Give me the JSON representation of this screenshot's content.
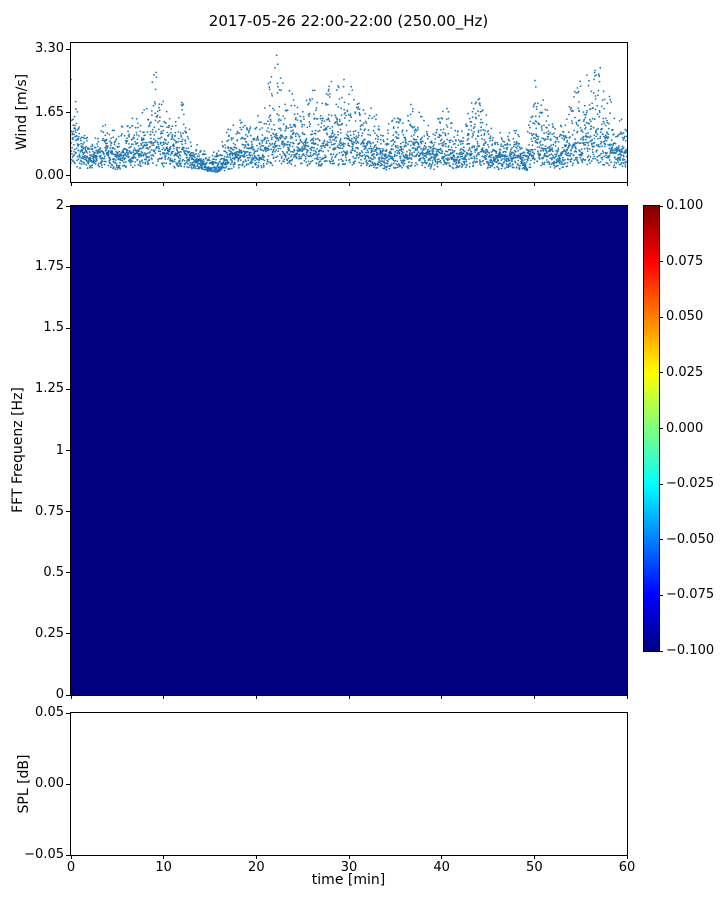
{
  "title": "2017-05-26 22:00-22:00 (250.00_Hz)",
  "chart_data": [
    {
      "type": "scatter",
      "ylabel": "Wind [m/s]",
      "xlim": [
        0,
        60
      ],
      "ylim": [
        -0.165,
        3.465
      ],
      "ytick_values": [
        0,
        1.65,
        3.3
      ],
      "ytick_labels": [
        "0.00",
        "1.65",
        "3.30"
      ],
      "xtick_values": [
        0,
        10,
        20,
        30,
        40,
        50,
        60
      ],
      "marker_color": "#1f77b4",
      "n_points": 4200,
      "seed": 7,
      "minute_base": [
        0.8,
        0.5,
        0.4,
        0.45,
        0.5,
        0.4,
        0.5,
        0.5,
        0.6,
        0.7,
        0.6,
        0.5,
        0.6,
        0.4,
        0.3,
        0.15,
        0.2,
        0.4,
        0.5,
        0.5,
        0.5,
        0.6,
        0.8,
        0.7,
        0.6,
        0.6,
        0.7,
        0.6,
        0.8,
        0.7,
        0.7,
        0.7,
        0.6,
        0.5,
        0.4,
        0.5,
        0.45,
        0.6,
        0.5,
        0.4,
        0.55,
        0.5,
        0.45,
        0.5,
        0.6,
        0.45,
        0.4,
        0.4,
        0.45,
        0.25,
        0.6,
        0.6,
        0.5,
        0.45,
        0.6,
        0.7,
        0.8,
        0.75,
        0.6,
        0.5
      ],
      "minute_max": [
        2.6,
        1.3,
        0.9,
        1.1,
        1.4,
        1.0,
        1.5,
        1.4,
        1.8,
        3.1,
        2.3,
        1.5,
        2.0,
        1.0,
        0.7,
        0.5,
        0.7,
        1.4,
        1.7,
        1.5,
        1.4,
        1.9,
        3.2,
        2.4,
        2.0,
        1.7,
        2.3,
        1.7,
        2.9,
        2.3,
        2.5,
        2.1,
        1.8,
        1.5,
        1.2,
        1.7,
        1.3,
        2.0,
        1.6,
        1.1,
        1.9,
        1.6,
        1.2,
        1.7,
        2.4,
        1.4,
        1.1,
        1.0,
        1.2,
        0.6,
        2.4,
        2.0,
        1.5,
        1.3,
        2.2,
        2.7,
        3.0,
        2.8,
        2.3,
        1.4
      ]
    },
    {
      "type": "heatmap",
      "ylabel": "FFT Frequenz [Hz]",
      "xlim": [
        0,
        60
      ],
      "ylim": [
        0,
        2
      ],
      "ytick_values": [
        0,
        0.25,
        0.5,
        0.75,
        1,
        1.25,
        1.5,
        1.75,
        2
      ],
      "ytick_labels": [
        "0",
        "0.25",
        "0.5",
        "0.75",
        "1",
        "1.25",
        "1.5",
        "1.75",
        "2"
      ],
      "xtick_values": [
        0,
        10,
        20,
        30,
        40,
        50,
        60
      ],
      "fill_value": -0.1,
      "fill_color": "#000080",
      "colorbar": {
        "colormap": "jet",
        "vmin": -0.1,
        "vmax": 0.1,
        "tick_labels": [
          "0.100",
          "0.075",
          "0.050",
          "0.025",
          "0.000",
          "−0.025",
          "−0.050",
          "−0.075",
          "−0.100"
        ],
        "gradient_stops": [
          {
            "pos": 0,
            "color": "#00007f"
          },
          {
            "pos": 12.5,
            "color": "#0000ff"
          },
          {
            "pos": 37.5,
            "color": "#00ffff"
          },
          {
            "pos": 62.5,
            "color": "#ffff00"
          },
          {
            "pos": 87.5,
            "color": "#ff0000"
          },
          {
            "pos": 100,
            "color": "#7f0000"
          }
        ]
      }
    },
    {
      "type": "line",
      "ylabel": "SPL [dB]",
      "xlabel": "time [min]",
      "xlim": [
        0,
        60
      ],
      "ylim": [
        -0.05,
        0.05
      ],
      "ytick_values": [
        -0.05,
        0,
        0.05
      ],
      "ytick_labels": [
        "−0.05",
        "0.00",
        "0.05"
      ],
      "xtick_values": [
        0,
        10,
        20,
        30,
        40,
        50,
        60
      ],
      "xtick_labels": [
        "0",
        "10",
        "20",
        "30",
        "40",
        "50",
        "60"
      ],
      "values": []
    }
  ]
}
